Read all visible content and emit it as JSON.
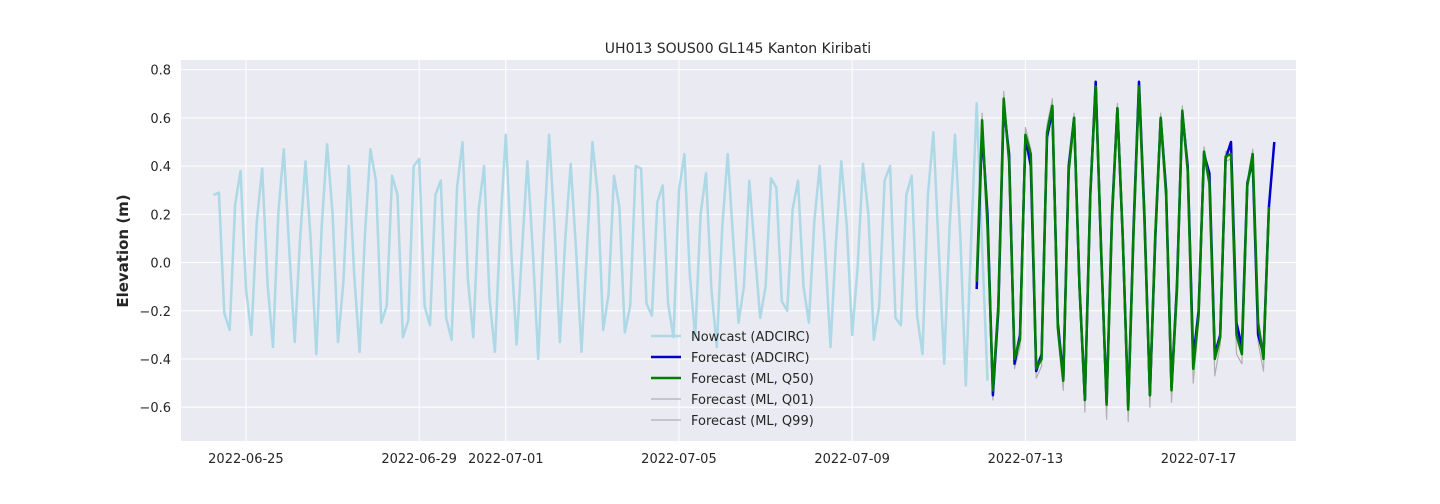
{
  "chart_data": {
    "type": "line",
    "title": "UH013 SOUS00 GL145 Kanton Kiribati",
    "xlabel": "",
    "ylabel": "Elevation (m)",
    "xlim": [
      "2022-06-23T12:00",
      "2022-07-19T06:00"
    ],
    "ylim": [
      -0.74,
      0.84
    ],
    "x_ticks": [
      "2022-06-25",
      "2022-06-29",
      "2022-07-01",
      "2022-07-05",
      "2022-07-09",
      "2022-07-13",
      "2022-07-17"
    ],
    "y_ticks": [
      -0.6,
      -0.4,
      -0.2,
      0.0,
      0.2,
      0.4,
      0.6,
      0.8
    ],
    "y_tick_labels": [
      "−0.6",
      "−0.4",
      "−0.2",
      "0.0",
      "0.2",
      "0.4",
      "0.6",
      "0.8"
    ],
    "grid": true,
    "legend_position": "lower-center",
    "series": [
      {
        "name": "Nowcast (ADCIRC)",
        "color": "#add8e6",
        "start": "2022-06-24T06:00",
        "step_hours": 3,
        "values": [
          0.28,
          0.29,
          -0.21,
          -0.28,
          0.24,
          0.38,
          -0.11,
          -0.3,
          0.17,
          0.39,
          -0.09,
          -0.35,
          0.21,
          0.47,
          0.05,
          -0.33,
          0.1,
          0.42,
          0.08,
          -0.38,
          0.15,
          0.49,
          0.2,
          -0.33,
          -0.08,
          0.4,
          -0.05,
          -0.37,
          0.12,
          0.47,
          0.34,
          -0.25,
          -0.18,
          0.36,
          0.28,
          -0.31,
          -0.24,
          0.4,
          0.43,
          -0.18,
          -0.26,
          0.28,
          0.34,
          -0.23,
          -0.32,
          0.31,
          0.5,
          -0.07,
          -0.31,
          0.22,
          0.4,
          -0.15,
          -0.37,
          0.15,
          0.53,
          0.05,
          -0.34,
          0.05,
          0.42,
          0.05,
          -0.4,
          0.1,
          0.53,
          0.15,
          -0.33,
          0.1,
          0.41,
          0.05,
          -0.37,
          0.05,
          0.5,
          0.28,
          -0.28,
          -0.13,
          0.36,
          0.23,
          -0.29,
          -0.18,
          0.4,
          0.39,
          -0.17,
          -0.22,
          0.25,
          0.32,
          -0.17,
          -0.31,
          0.3,
          0.45,
          -0.05,
          -0.31,
          0.2,
          0.37,
          -0.11,
          -0.35,
          0.15,
          0.45,
          0.1,
          -0.25,
          -0.1,
          0.34,
          0.05,
          -0.23,
          -0.1,
          0.35,
          0.31,
          -0.16,
          -0.2,
          0.22,
          0.34,
          -0.1,
          -0.25,
          0.17,
          0.4,
          0.05,
          -0.35,
          0.08,
          0.42,
          0.15,
          -0.3,
          -0.02,
          0.41,
          0.2,
          -0.32,
          -0.18,
          0.34,
          0.4,
          -0.23,
          -0.26,
          0.28,
          0.36,
          -0.22,
          -0.38,
          0.28,
          0.54,
          0.05,
          -0.42,
          0.15,
          0.53,
          0.1,
          -0.51,
          0.1,
          0.66,
          0.07,
          -0.49
        ]
      },
      {
        "name": "Forecast (ADCIRC)",
        "color": "#0000cc",
        "start": "2022-07-11T21:00",
        "step_hours": 3,
        "values": [
          -0.11,
          0.55,
          0.2,
          -0.55,
          -0.2,
          0.65,
          0.45,
          -0.42,
          -0.3,
          0.52,
          0.4,
          -0.45,
          -0.38,
          0.52,
          0.63,
          -0.25,
          -0.48,
          0.4,
          0.6,
          -0.1,
          -0.57,
          0.28,
          0.75,
          0.05,
          -0.58,
          0.2,
          0.64,
          0.1,
          -0.6,
          0.15,
          0.75,
          0.2,
          -0.55,
          0.1,
          0.6,
          0.3,
          -0.52,
          -0.1,
          0.62,
          0.4,
          -0.4,
          -0.2,
          0.45,
          0.37,
          -0.38,
          -0.3,
          0.43,
          0.5,
          -0.25,
          -0.35,
          0.33,
          0.42,
          -0.3,
          -0.38,
          0.23,
          0.5
        ]
      },
      {
        "name": "Forecast (ML, Q50)",
        "color": "#007f00",
        "start": "2022-07-11T21:00",
        "step_hours": 3,
        "values": [
          -0.08,
          0.59,
          0.15,
          -0.53,
          -0.18,
          0.68,
          0.42,
          -0.4,
          -0.32,
          0.53,
          0.45,
          -0.44,
          -0.4,
          0.54,
          0.65,
          -0.27,
          -0.49,
          0.38,
          0.6,
          -0.1,
          -0.57,
          0.29,
          0.73,
          0.06,
          -0.59,
          0.18,
          0.64,
          0.1,
          -0.61,
          0.13,
          0.73,
          0.18,
          -0.55,
          0.12,
          0.6,
          0.28,
          -0.53,
          -0.12,
          0.63,
          0.38,
          -0.44,
          -0.22,
          0.46,
          0.33,
          -0.4,
          -0.31,
          0.44,
          0.45,
          -0.3,
          -0.38,
          0.32,
          0.45,
          -0.25,
          -0.4,
          0.23
        ]
      },
      {
        "name": "Forecast (ML, Q01)",
        "color": "#b0b0b0",
        "start": "2022-07-11T21:00",
        "step_hours": 3,
        "values": [
          -0.06,
          0.62,
          0.18,
          -0.49,
          -0.15,
          0.71,
          0.44,
          -0.38,
          -0.3,
          0.56,
          0.47,
          -0.42,
          -0.38,
          0.57,
          0.68,
          -0.25,
          -0.47,
          0.4,
          0.62,
          -0.08,
          -0.55,
          0.31,
          0.75,
          0.08,
          -0.57,
          0.2,
          0.66,
          0.12,
          -0.59,
          0.15,
          0.75,
          0.2,
          -0.53,
          0.14,
          0.62,
          0.3,
          -0.51,
          -0.1,
          0.65,
          0.4,
          -0.42,
          -0.2,
          0.48,
          0.35,
          -0.38,
          -0.29,
          0.46,
          0.47,
          -0.28,
          -0.36,
          0.34,
          0.47,
          -0.23,
          -0.38,
          0.25
        ]
      },
      {
        "name": "Forecast (ML, Q99)",
        "color": "#b0b0b0",
        "start": "2022-07-11T21:00",
        "step_hours": 3,
        "values": [
          -0.1,
          0.56,
          0.12,
          -0.57,
          -0.21,
          0.65,
          0.4,
          -0.44,
          -0.35,
          0.5,
          0.42,
          -0.48,
          -0.43,
          0.51,
          0.62,
          -0.3,
          -0.53,
          0.36,
          0.58,
          -0.13,
          -0.62,
          0.27,
          0.71,
          0.03,
          -0.65,
          0.16,
          0.62,
          0.08,
          -0.66,
          0.11,
          0.71,
          0.16,
          -0.6,
          0.1,
          0.58,
          0.26,
          -0.58,
          -0.15,
          0.61,
          0.36,
          -0.5,
          -0.25,
          0.44,
          0.31,
          -0.47,
          -0.34,
          0.42,
          0.43,
          -0.38,
          -0.42,
          0.3,
          0.43,
          -0.33,
          -0.45,
          0.21
        ]
      }
    ]
  }
}
